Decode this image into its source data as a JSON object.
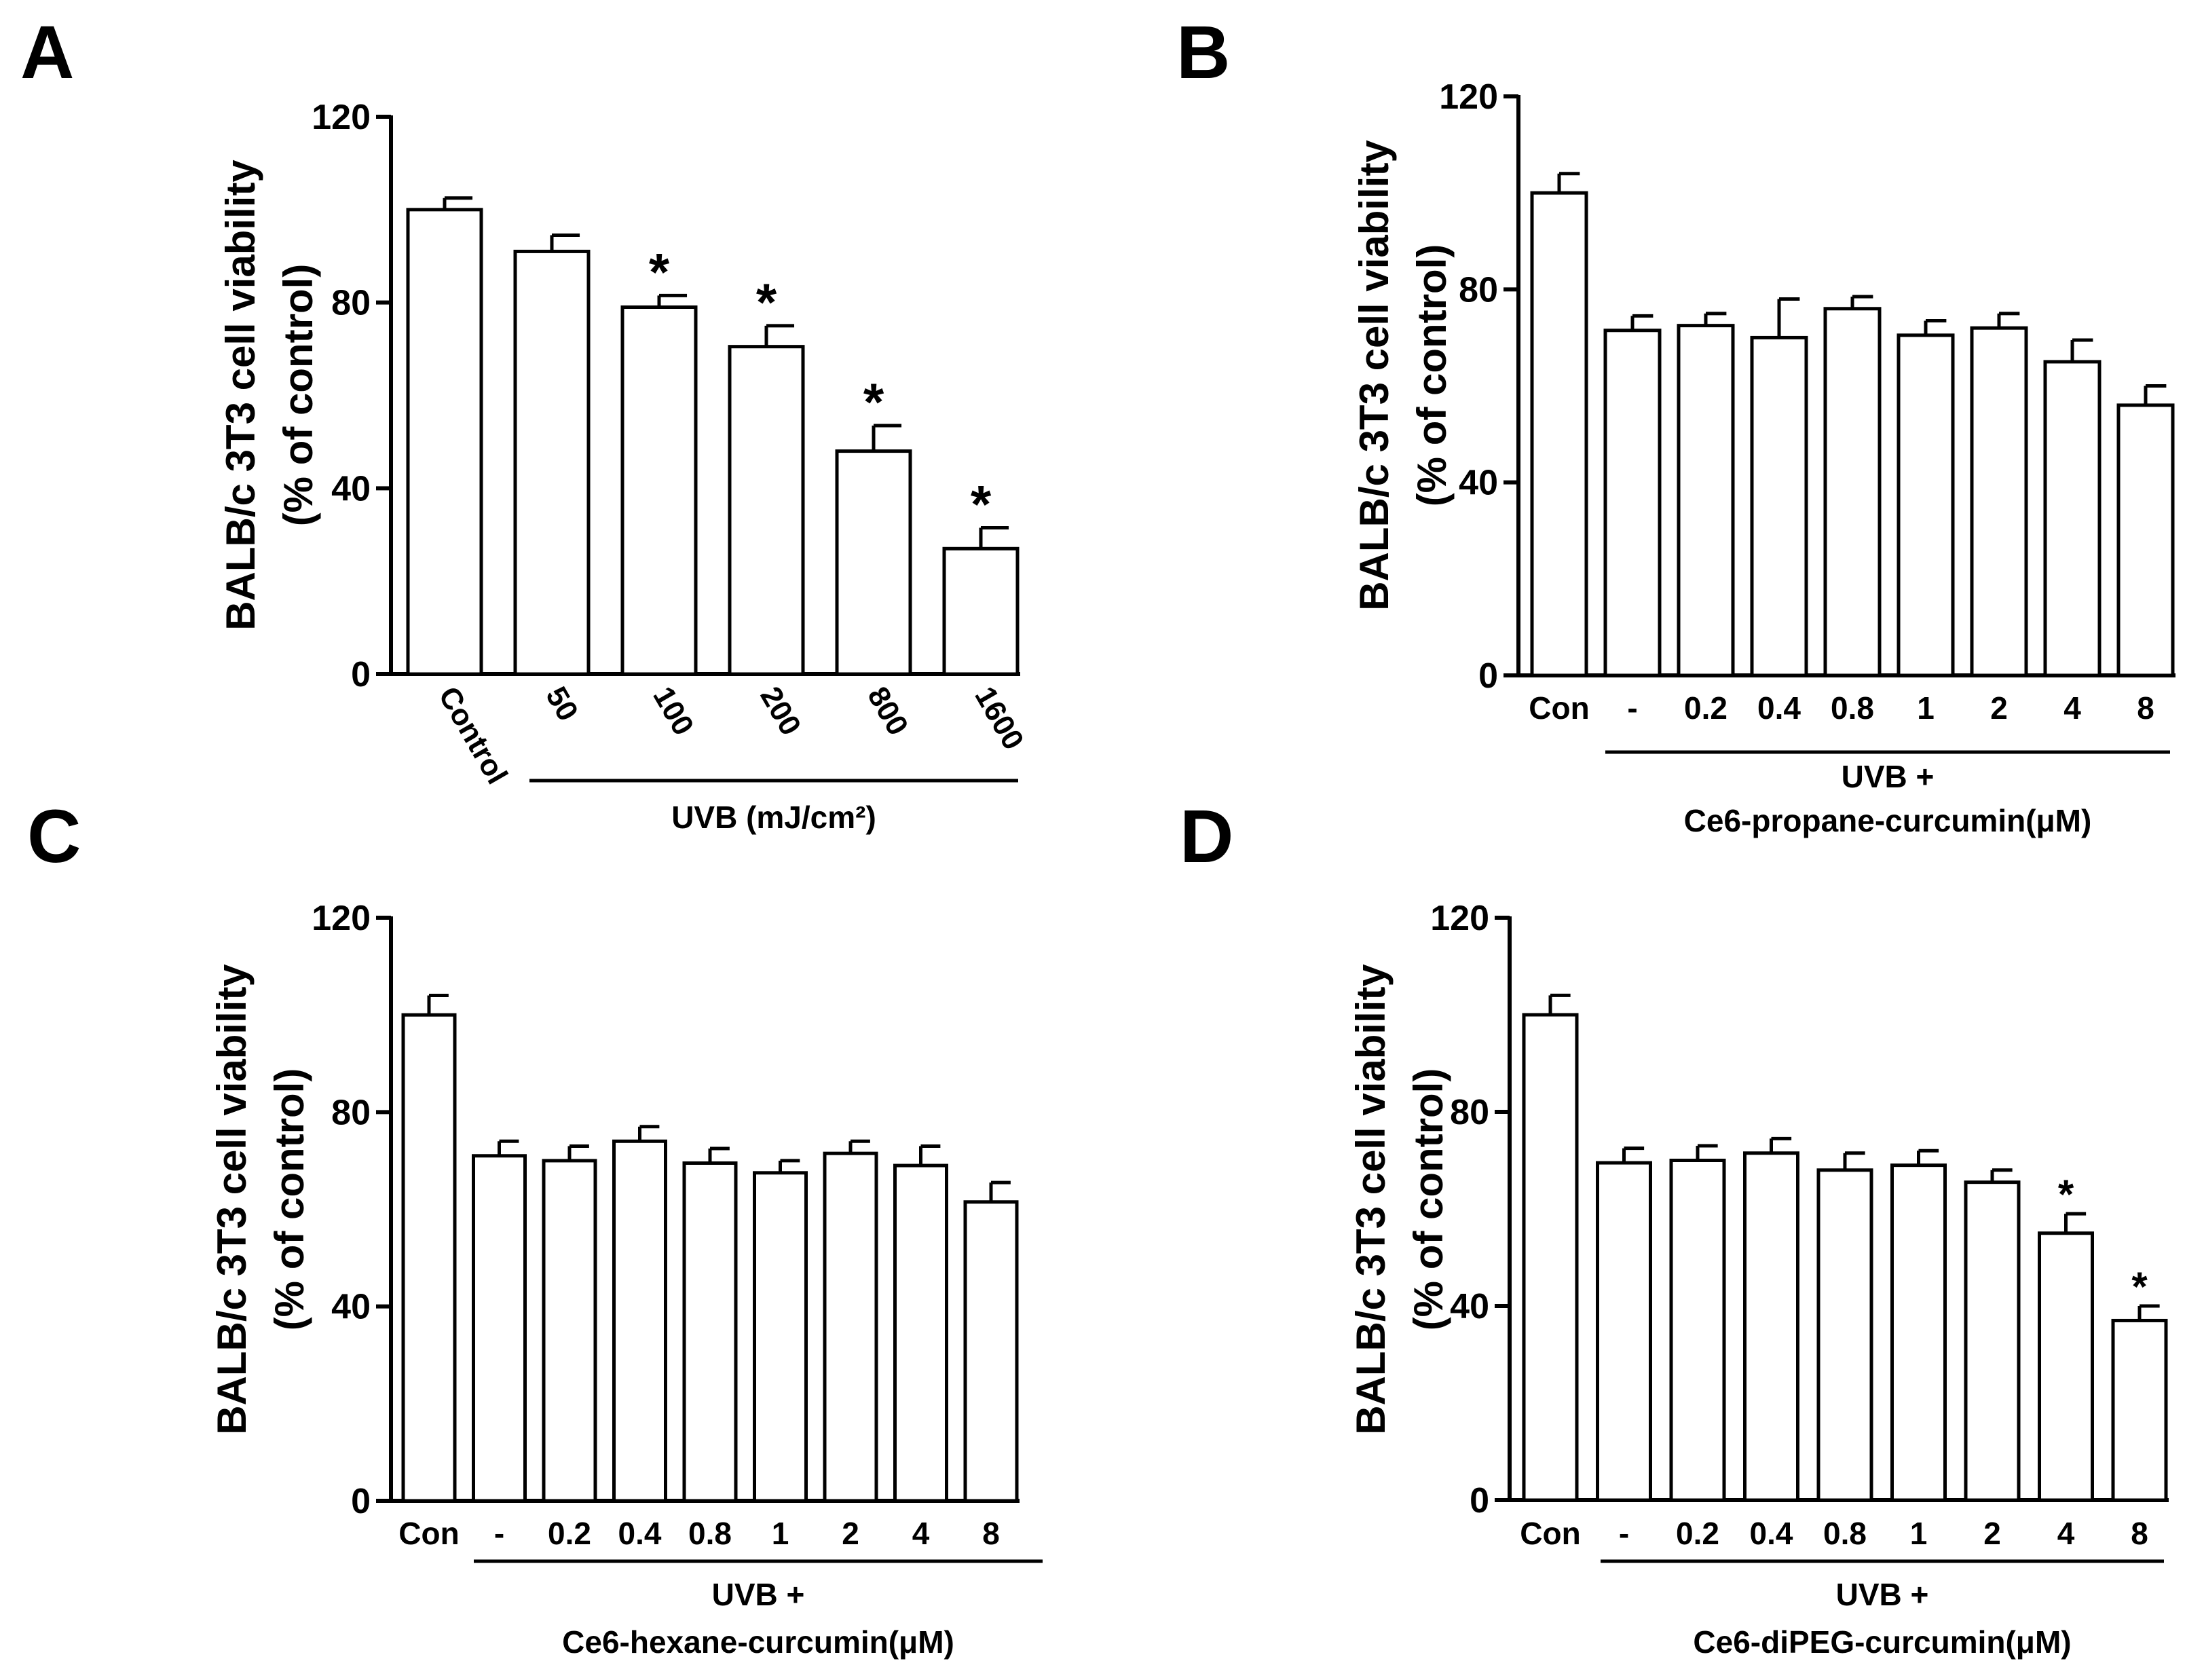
{
  "colors": {
    "bar_fill": "#ffffff",
    "stroke": "#000000"
  },
  "panels": [
    {
      "label": "A",
      "ylabel": [
        "BALB/c 3T3 cell viability",
        "(% of control)"
      ],
      "yticks": [
        0,
        40,
        80,
        120
      ],
      "group_label": [
        "UVB (mJ/cm²)"
      ]
    },
    {
      "label": "B",
      "ylabel": [
        "BALB/c 3T3 cell viability",
        "(% of control)"
      ],
      "yticks": [
        0,
        40,
        80,
        120
      ],
      "group_label": [
        "UVB  +",
        "Ce6-propane-curcumin(μM)"
      ]
    },
    {
      "label": "C",
      "ylabel": [
        "BALB/c 3T3 cell viability",
        "(% of control)"
      ],
      "yticks": [
        0,
        40,
        80,
        120
      ],
      "group_label": [
        "UVB  +",
        "Ce6-hexane-curcumin(μM)"
      ]
    },
    {
      "label": "D",
      "ylabel": [
        "BALB/c 3T3 cell viability",
        "(% of control)"
      ],
      "yticks": [
        0,
        40,
        80,
        120
      ],
      "group_label": [
        "UVB  +",
        "Ce6-diPEG-curcumin(μM)"
      ]
    }
  ],
  "chart_data": [
    {
      "type": "bar",
      "title": "A",
      "xlabel": "UVB (mJ/cm²)",
      "ylabel": "BALB/c 3T3 cell viability (% of control)",
      "ylim": [
        0,
        120
      ],
      "categories": [
        "Control",
        "50",
        "100",
        "200",
        "800",
        "1600"
      ],
      "values": [
        100,
        91,
        79,
        70.5,
        48,
        27
      ],
      "errors": [
        2.5,
        3.5,
        2.5,
        4.5,
        5.5,
        4.5
      ],
      "significant": [
        false,
        false,
        true,
        true,
        true,
        true
      ],
      "annotation": "*"
    },
    {
      "type": "bar",
      "title": "B",
      "xlabel": "UVB + Ce6-propane-curcumin(μM)",
      "ylabel": "BALB/c 3T3 cell viability (% of control)",
      "ylim": [
        0,
        120
      ],
      "categories": [
        "Con",
        "-",
        "0.2",
        "0.4",
        "0.8",
        "1",
        "2",
        "4",
        "8"
      ],
      "values": [
        100,
        71.5,
        72.5,
        70,
        76,
        70.5,
        72,
        65,
        56
      ],
      "errors": [
        4,
        3,
        2.5,
        8,
        2.5,
        3,
        3,
        4.5,
        4
      ],
      "significant": [
        false,
        false,
        false,
        false,
        false,
        false,
        false,
        false,
        false
      ],
      "annotation": "*"
    },
    {
      "type": "bar",
      "title": "C",
      "xlabel": "UVB + Ce6-hexane-curcumin(μM)",
      "ylabel": "BALB/c 3T3 cell viability (% of control)",
      "ylim": [
        0,
        120
      ],
      "categories": [
        "Con",
        "-",
        "0.2",
        "0.4",
        "0.8",
        "1",
        "2",
        "4",
        "8"
      ],
      "values": [
        100,
        71,
        70,
        74,
        69.5,
        67.5,
        71.5,
        69,
        61.5
      ],
      "errors": [
        4,
        3,
        3,
        3,
        3,
        2.5,
        2.5,
        4,
        4
      ],
      "significant": [
        false,
        false,
        false,
        false,
        false,
        false,
        false,
        false,
        false
      ],
      "annotation": "*"
    },
    {
      "type": "bar",
      "title": "D",
      "xlabel": "UVB + Ce6-diPEG-curcumin(μM)",
      "ylabel": "BALB/c 3T3 cell viability (% of control)",
      "ylim": [
        0,
        120
      ],
      "categories": [
        "Con",
        "-",
        "0.2",
        "0.4",
        "0.8",
        "1",
        "2",
        "4",
        "8"
      ],
      "values": [
        100,
        69.5,
        70,
        71.5,
        68,
        69,
        65.5,
        55,
        37
      ],
      "errors": [
        4,
        3,
        3,
        3,
        3.5,
        3,
        2.5,
        4,
        3
      ],
      "significant": [
        false,
        false,
        false,
        false,
        false,
        false,
        false,
        true,
        true
      ],
      "annotation": "*"
    }
  ]
}
